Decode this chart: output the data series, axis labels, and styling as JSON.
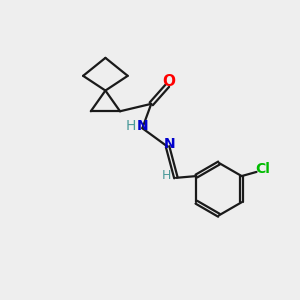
{
  "background_color": "#eeeeee",
  "bond_color": "#1a1a1a",
  "atom_colors": {
    "O": "#ff0000",
    "N": "#0000cc",
    "Cl": "#00bb00",
    "H": "#4a9a9a",
    "C": "#1a1a1a"
  },
  "figsize": [
    3.0,
    3.0
  ],
  "dpi": 100
}
